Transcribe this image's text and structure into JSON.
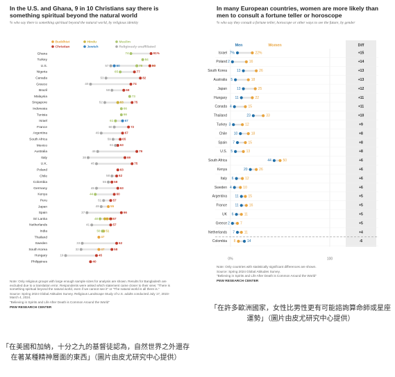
{
  "chart_data": [
    {
      "type": "dot",
      "title": "In the U.S. and Ghana, 9 in 10 Christians say there is something spiritual beyond the natural world",
      "subtitle": "% who say there is something spiritual beyond the natural world, by religious identity",
      "xlim": [
        0,
        100
      ],
      "categories": [
        "Ghana",
        "Turkey",
        "U.S.",
        "Nigeria",
        "Canada",
        "Greece",
        "Brazil",
        "Malaysia",
        "Singapore",
        "Indonesia",
        "Tunisia",
        "Israel",
        "France",
        "Argentina",
        "South Africa",
        "Mexico",
        "Australia",
        "Italy",
        "U.K.",
        "Poland",
        "Chile",
        "Colombia",
        "Germany",
        "Kenya",
        "Peru",
        "Japan",
        "Spain",
        "Sri Lanka",
        "Netherlands",
        "India",
        "Thailand",
        "Sweden",
        "South Korea",
        "Hungary",
        "Philippines"
      ],
      "series": [
        {
          "name": "Buddhist",
          "color": "#e8a33d",
          "values": [
            null,
            null,
            90,
            null,
            null,
            null,
            null,
            null,
            63,
            null,
            null,
            null,
            null,
            null,
            null,
            null,
            null,
            null,
            null,
            null,
            null,
            null,
            null,
            null,
            null,
            55,
            null,
            54,
            null,
            null,
            47,
            null,
            47,
            null,
            null
          ]
        },
        {
          "name": "Hindu",
          "color": "#c9b13a",
          "values": [
            null,
            null,
            79,
            null,
            null,
            null,
            null,
            null,
            63,
            null,
            null,
            null,
            null,
            null,
            null,
            null,
            null,
            null,
            null,
            null,
            null,
            null,
            null,
            null,
            null,
            null,
            null,
            52,
            null,
            51,
            null,
            null,
            null,
            null,
            null
          ]
        },
        {
          "name": "Muslim",
          "color": "#a9c46c",
          "values": [
            74,
            84,
            79,
            65,
            null,
            null,
            null,
            73,
            null,
            66,
            66,
            61,
            null,
            null,
            null,
            null,
            null,
            null,
            null,
            null,
            null,
            null,
            null,
            44,
            null,
            null,
            null,
            48,
            null,
            50,
            null,
            null,
            null,
            null,
            null
          ]
        },
        {
          "name": "Christian",
          "color": "#c0392b",
          "values": [
            91,
            null,
            90,
            77,
            82,
            74,
            68,
            null,
            75,
            null,
            null,
            null,
            72,
            67,
            65,
            63,
            79,
            69,
            75,
            63,
            62,
            58,
            63,
            60,
            57,
            null,
            66,
            57,
            57,
            null,
            null,
            62,
            58,
            45,
            40
          ],
          "value_labels": [
            "91%",
            null,
            "90",
            "77",
            "82",
            "74",
            "68",
            null,
            "75",
            null,
            null,
            null,
            "72",
            "67",
            "65",
            "63",
            "79",
            "69",
            "75",
            "63",
            "62",
            "58",
            "63",
            "60",
            "57",
            null,
            "66",
            "57",
            "57",
            null,
            null,
            "62",
            "58",
            "45",
            "40"
          ]
        },
        {
          "name": "Jewish",
          "color": "#2f7fbf",
          "values": [
            null,
            null,
            60,
            null,
            null,
            null,
            null,
            null,
            null,
            null,
            null,
            67,
            null,
            null,
            null,
            null,
            null,
            null,
            null,
            null,
            null,
            null,
            null,
            null,
            null,
            null,
            null,
            null,
            null,
            null,
            null,
            null,
            null,
            null,
            null
          ]
        },
        {
          "name": "Religiously unaffiliated",
          "color": "#a8a8a8",
          "values": [
            null,
            null,
            57,
            null,
            53,
            40,
            58,
            null,
            52,
            null,
            null,
            null,
            60,
            49,
            59,
            61,
            46,
            38,
            45,
            null,
            58,
            55,
            45,
            null,
            51,
            49,
            37,
            null,
            41,
            null,
            null,
            33,
            32,
            19,
            null
          ]
        }
      ],
      "notes": [
        "Note: Only religious groups with large enough sample sizes for analysis are shown. Results for Bangladesh are excluded due to a translation error. Respondents were asked which statement came closer to their view: \"There is something spiritual beyond the natural world, even if we cannot see it\" or \"The natural world is all there is.\"",
        "Source: Spring 2024 Global Attitudes Survey. Religious Landscape Study of U.S. adults conducted July 17, 2023-March 4, 2024.",
        "\"Believing in Spirits and Life After Death is Common Around the World\""
      ],
      "credit": "PEW RESEARCH CENTER"
    },
    {
      "type": "dot",
      "title": "In many European countries, women are more likely than men to consult a fortune teller or horoscope",
      "subtitle": "% who say they consult a fortune teller, horoscope or other ways to see the future, by gender",
      "xlim": [
        0,
        100
      ],
      "xticks": [
        {
          "value": 0,
          "label": "0%"
        },
        100
      ],
      "categories": [
        "Israel",
        "Poland",
        "South Korea",
        "Australia",
        "Japan",
        "Hungary",
        "Canada",
        "Thailand",
        "Turkey",
        "Chile",
        "Spain",
        "U.S.",
        "South Africa",
        "Kenya",
        "Italy",
        "Sweden",
        "Argentina",
        "France",
        "UK",
        "Greece",
        "Netherlands",
        "Colombia"
      ],
      "series": [
        {
          "name": "Men",
          "color": "#1f6ea8",
          "values": [
            7,
            2,
            13,
            5,
            13,
            11,
            4,
            23,
            3,
            10,
            7,
            5,
            44,
            20,
            6,
            4,
            11,
            11,
            6,
            2,
            7,
            14
          ],
          "value_labels": [
            "7%",
            "2",
            "13",
            "5",
            "13",
            "11",
            "4",
            "23",
            "3",
            "10",
            "7",
            "5",
            "44",
            "20",
            "6",
            "4",
            "11",
            "11",
            "6",
            "2",
            "7",
            "14"
          ]
        },
        {
          "name": "Women",
          "color": "#e8a33d",
          "values": [
            22,
            16,
            26,
            18,
            25,
            22,
            15,
            33,
            12,
            18,
            15,
            13,
            50,
            26,
            12,
            10,
            15,
            16,
            11,
            7,
            11,
            8
          ],
          "value_labels": [
            "22%",
            "16",
            "26",
            "18",
            "25",
            "22",
            "15",
            "33",
            "12",
            "18",
            "15",
            "13",
            "50",
            "26",
            "12",
            "10",
            "15",
            "16",
            "11",
            "7",
            "11",
            "8"
          ]
        }
      ],
      "diff_header": "Diff",
      "diff": {
        "values": [
          15,
          14,
          13,
          13,
          12,
          11,
          11,
          10,
          9,
          8,
          8,
          8,
          6,
          6,
          6,
          6,
          5,
          5,
          5,
          5,
          4,
          -6
        ],
        "value_labels": [
          "+15",
          "+14",
          "+13",
          "+13",
          "+12",
          "+11",
          "+11",
          "+10",
          "+9",
          "+8",
          "+8",
          "+8",
          "+6",
          "+6",
          "+6",
          "+6",
          "+5",
          "+5",
          "+5",
          "+5",
          "+4",
          "-6"
        ]
      },
      "notes": [
        "Note: Only countries with statistically significant differences are shown.",
        "Source: Spring 2024 Global Attitudes Survey.",
        "\"Believing in Spirits and Life After Death is Common Around the World\""
      ],
      "credit": "PEW RESEARCH CENTER"
    }
  ],
  "captions": [
    "「在美國和加納，十分之九的基督徒認為，自然世界之外還存在著某種精神層面的東西」（圖片由皮尤研究中心提供）",
    "「在許多歐洲國家，女性比男性更有可能諮詢算命師或星座運勢」（圖片由皮尤研究中心提供）"
  ]
}
